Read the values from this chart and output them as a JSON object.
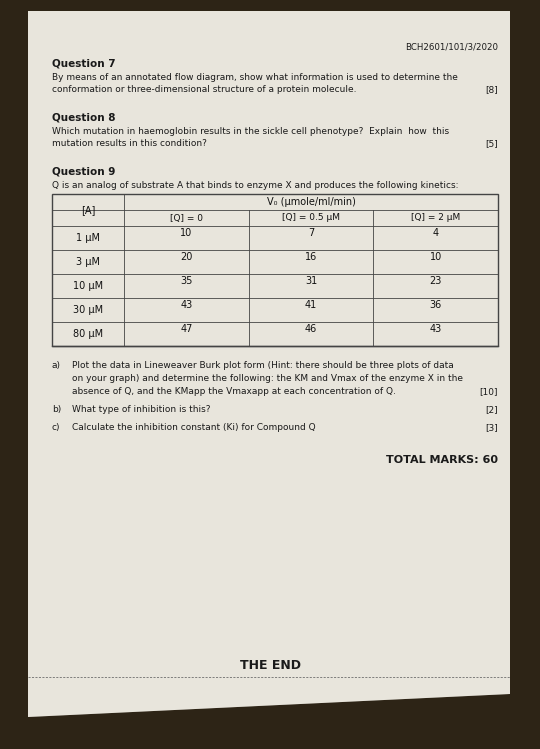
{
  "bg_dark": "#2d2416",
  "paper_color": "#e8e5dc",
  "paper_color2": "#d8d5cc",
  "header_code": "BCH2601/101/3/2020",
  "q7_label": "Question 7",
  "q7_line1": "By means of an annotated flow diagram, show what information is used to determine the",
  "q7_line2": "conformation or three-dimensional structure of a protein molecule.",
  "q7_marks": "[8]",
  "q8_label": "Question 8",
  "q8_line1": "Which mutation in haemoglobin results in the sickle cell phenotype?  Explain  how  this",
  "q8_line2": "mutation results in this condition?",
  "q8_marks": "[5]",
  "q9_label": "Question 9",
  "q9_intro": "Q is an analog of substrate A that binds to enzyme X and produces the following kinetics:",
  "table_header_A": "[A]",
  "table_header_V0": "V₀ (μmole/ml/min)",
  "table_col1": "[Q] = 0",
  "table_col2": "[Q] = 0.5 μM",
  "table_col3": "[Q] = 2 μM",
  "table_rows": [
    [
      "1 μM",
      "10",
      "7",
      "4"
    ],
    [
      "3 μM",
      "20",
      "16",
      "10"
    ],
    [
      "10 μM",
      "35",
      "31",
      "23"
    ],
    [
      "30 μM",
      "43",
      "41",
      "36"
    ],
    [
      "80 μM",
      "47",
      "46",
      "43"
    ]
  ],
  "qa_label": "a)",
  "qa_line1": "Plot the data in Lineweaver Burk plot form (Hint: there should be three plots of data",
  "qa_line2": "on your graph) and determine the following: the KM and Vmax of the enzyme X in the",
  "qa_line3": "absence of Q, and the KMapp the Vmaxapp at each concentration of Q.",
  "qa_marks": "[10]",
  "qb_label": "b)",
  "qb_text": "What type of inhibition is this?",
  "qb_marks": "[2]",
  "qc_label": "c)",
  "qc_text": "Calculate the inhibition constant (Ki) for Compound Q",
  "qc_marks": "[3]",
  "total": "TOTAL MARKS: 60",
  "the_end": "THE END"
}
